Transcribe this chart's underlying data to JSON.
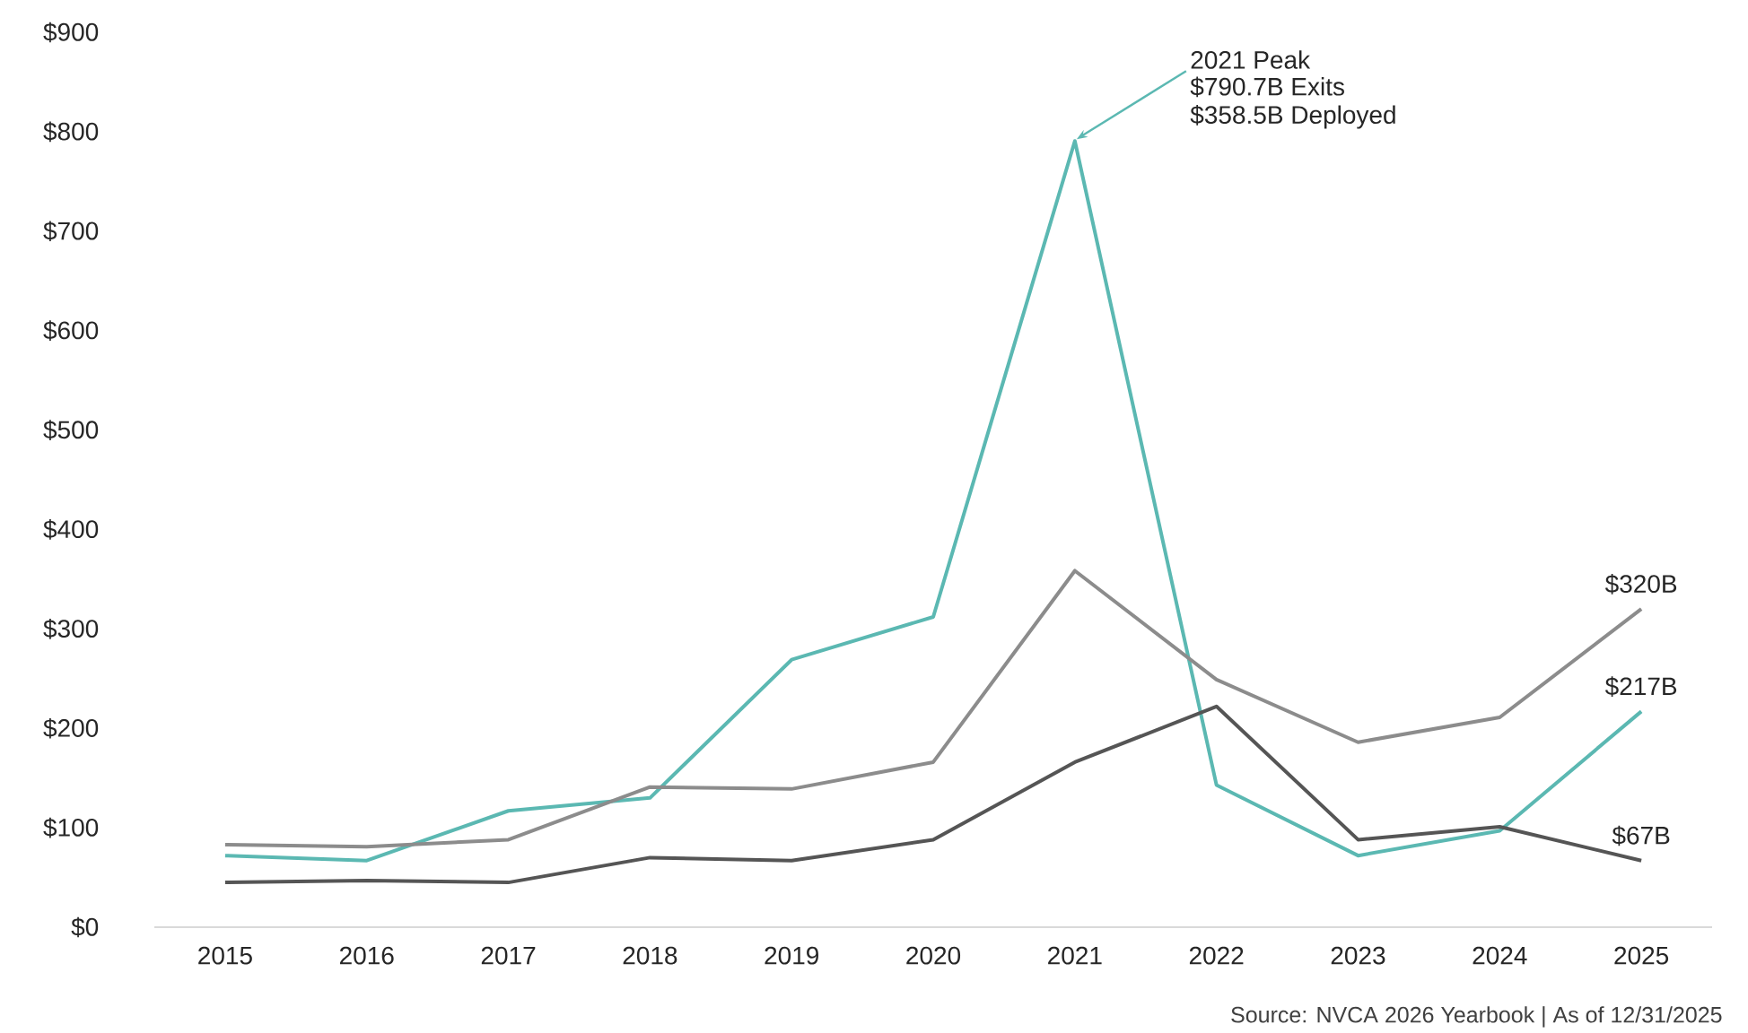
{
  "chart_data": {
    "type": "line",
    "categories": [
      "2015",
      "2016",
      "2017",
      "2018",
      "2019",
      "2020",
      "2021",
      "2022",
      "2023",
      "2024",
      "2025"
    ],
    "series": [
      {
        "color": "#5bb8b2",
        "values": [
          72,
          67,
          117,
          130,
          269,
          312,
          790.7,
          143,
          72,
          97,
          217
        ]
      },
      {
        "color": "#8c8c8c",
        "values": [
          83,
          81,
          88,
          141,
          139,
          166,
          358.5,
          249,
          186,
          211,
          320
        ]
      },
      {
        "color": "#555555",
        "values": [
          45,
          47,
          45,
          70,
          67,
          88,
          166,
          222,
          88,
          101,
          67
        ]
      }
    ],
    "ylim": [
      0,
      900
    ],
    "yticks": [
      {
        "value": 0,
        "label": "$0"
      },
      {
        "value": 100,
        "label": "$100"
      },
      {
        "value": 200,
        "label": "$200"
      },
      {
        "value": 300,
        "label": "$300"
      },
      {
        "value": 400,
        "label": "$400"
      },
      {
        "value": 500,
        "label": "$500"
      },
      {
        "value": 600,
        "label": "$600"
      },
      {
        "value": 700,
        "label": "$700"
      },
      {
        "value": 800,
        "label": "$800"
      },
      {
        "value": 900,
        "label": "$900"
      }
    ],
    "marker": "none",
    "line_style": "solid",
    "annotations": [
      {
        "text": "2021 Peak",
        "x": "2021",
        "y": 790.7
      },
      "$790.7B Exits",
      "$358.5B Deployed",
      {
        "text": "$320B",
        "x": "2025",
        "y": 320
      },
      {
        "text": "$217B",
        "x": "2025",
        "y": 217
      },
      {
        "text": "$67B",
        "x": "2025",
        "y": 67
      },
      "Source: NVCA 2026 Yearbook | As of 12/31/2025"
    ]
  }
}
